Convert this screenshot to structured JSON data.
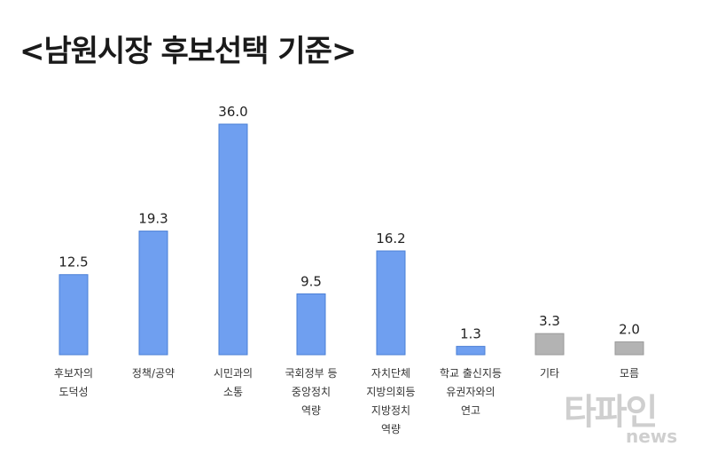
{
  "chart_data": {
    "type": "bar",
    "title": "<남원시장 후보선택 기준>",
    "categories": [
      "후보자의\n도덕성",
      "정책/공약",
      "시민과의\n소통",
      "국회정부 등\n중앙정치\n역량",
      "자치단체\n지방의회등\n지방정치\n역량",
      "학교 출신지등\n유권자와의\n연고",
      "기타",
      "모름"
    ],
    "values": [
      12.5,
      19.3,
      36.0,
      9.5,
      16.2,
      1.3,
      3.3,
      2.0
    ],
    "value_labels": [
      "12.5",
      "19.3",
      "36.0",
      "9.5",
      "16.2",
      "1.3",
      "3.3",
      "2.0"
    ],
    "ylim": [
      0,
      36.0
    ],
    "grid": false,
    "colors": {
      "main": "#6f9ff0",
      "main_stroke": "#4a7fd6",
      "other": "#b3b3b3",
      "other_stroke": "#9a9a9a"
    },
    "highlight_other_from_index": 6
  },
  "watermark": {
    "main": "타파인",
    "sub": "news"
  }
}
